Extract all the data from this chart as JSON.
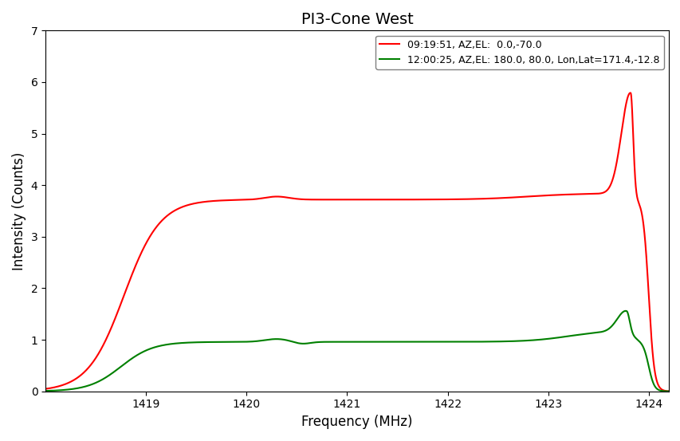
{
  "title": "PI3-Cone West",
  "xlabel": "Frequency (MHz)",
  "ylabel": "Intensity (Counts)",
  "xlim": [
    1418.0,
    1424.2
  ],
  "ylim": [
    0,
    7
  ],
  "yticks": [
    0,
    1,
    2,
    3,
    4,
    5,
    6,
    7
  ],
  "red_label": "09:19:51, AZ,EL:  0.0,-70.0",
  "green_label": "12:00:25, AZ,EL: 180.0, 80.0, Lon,Lat=171.4,-12.8",
  "red_color": "red",
  "green_color": "green",
  "freq_start": 1418.0,
  "freq_end": 1424.25,
  "n_points": 5000
}
